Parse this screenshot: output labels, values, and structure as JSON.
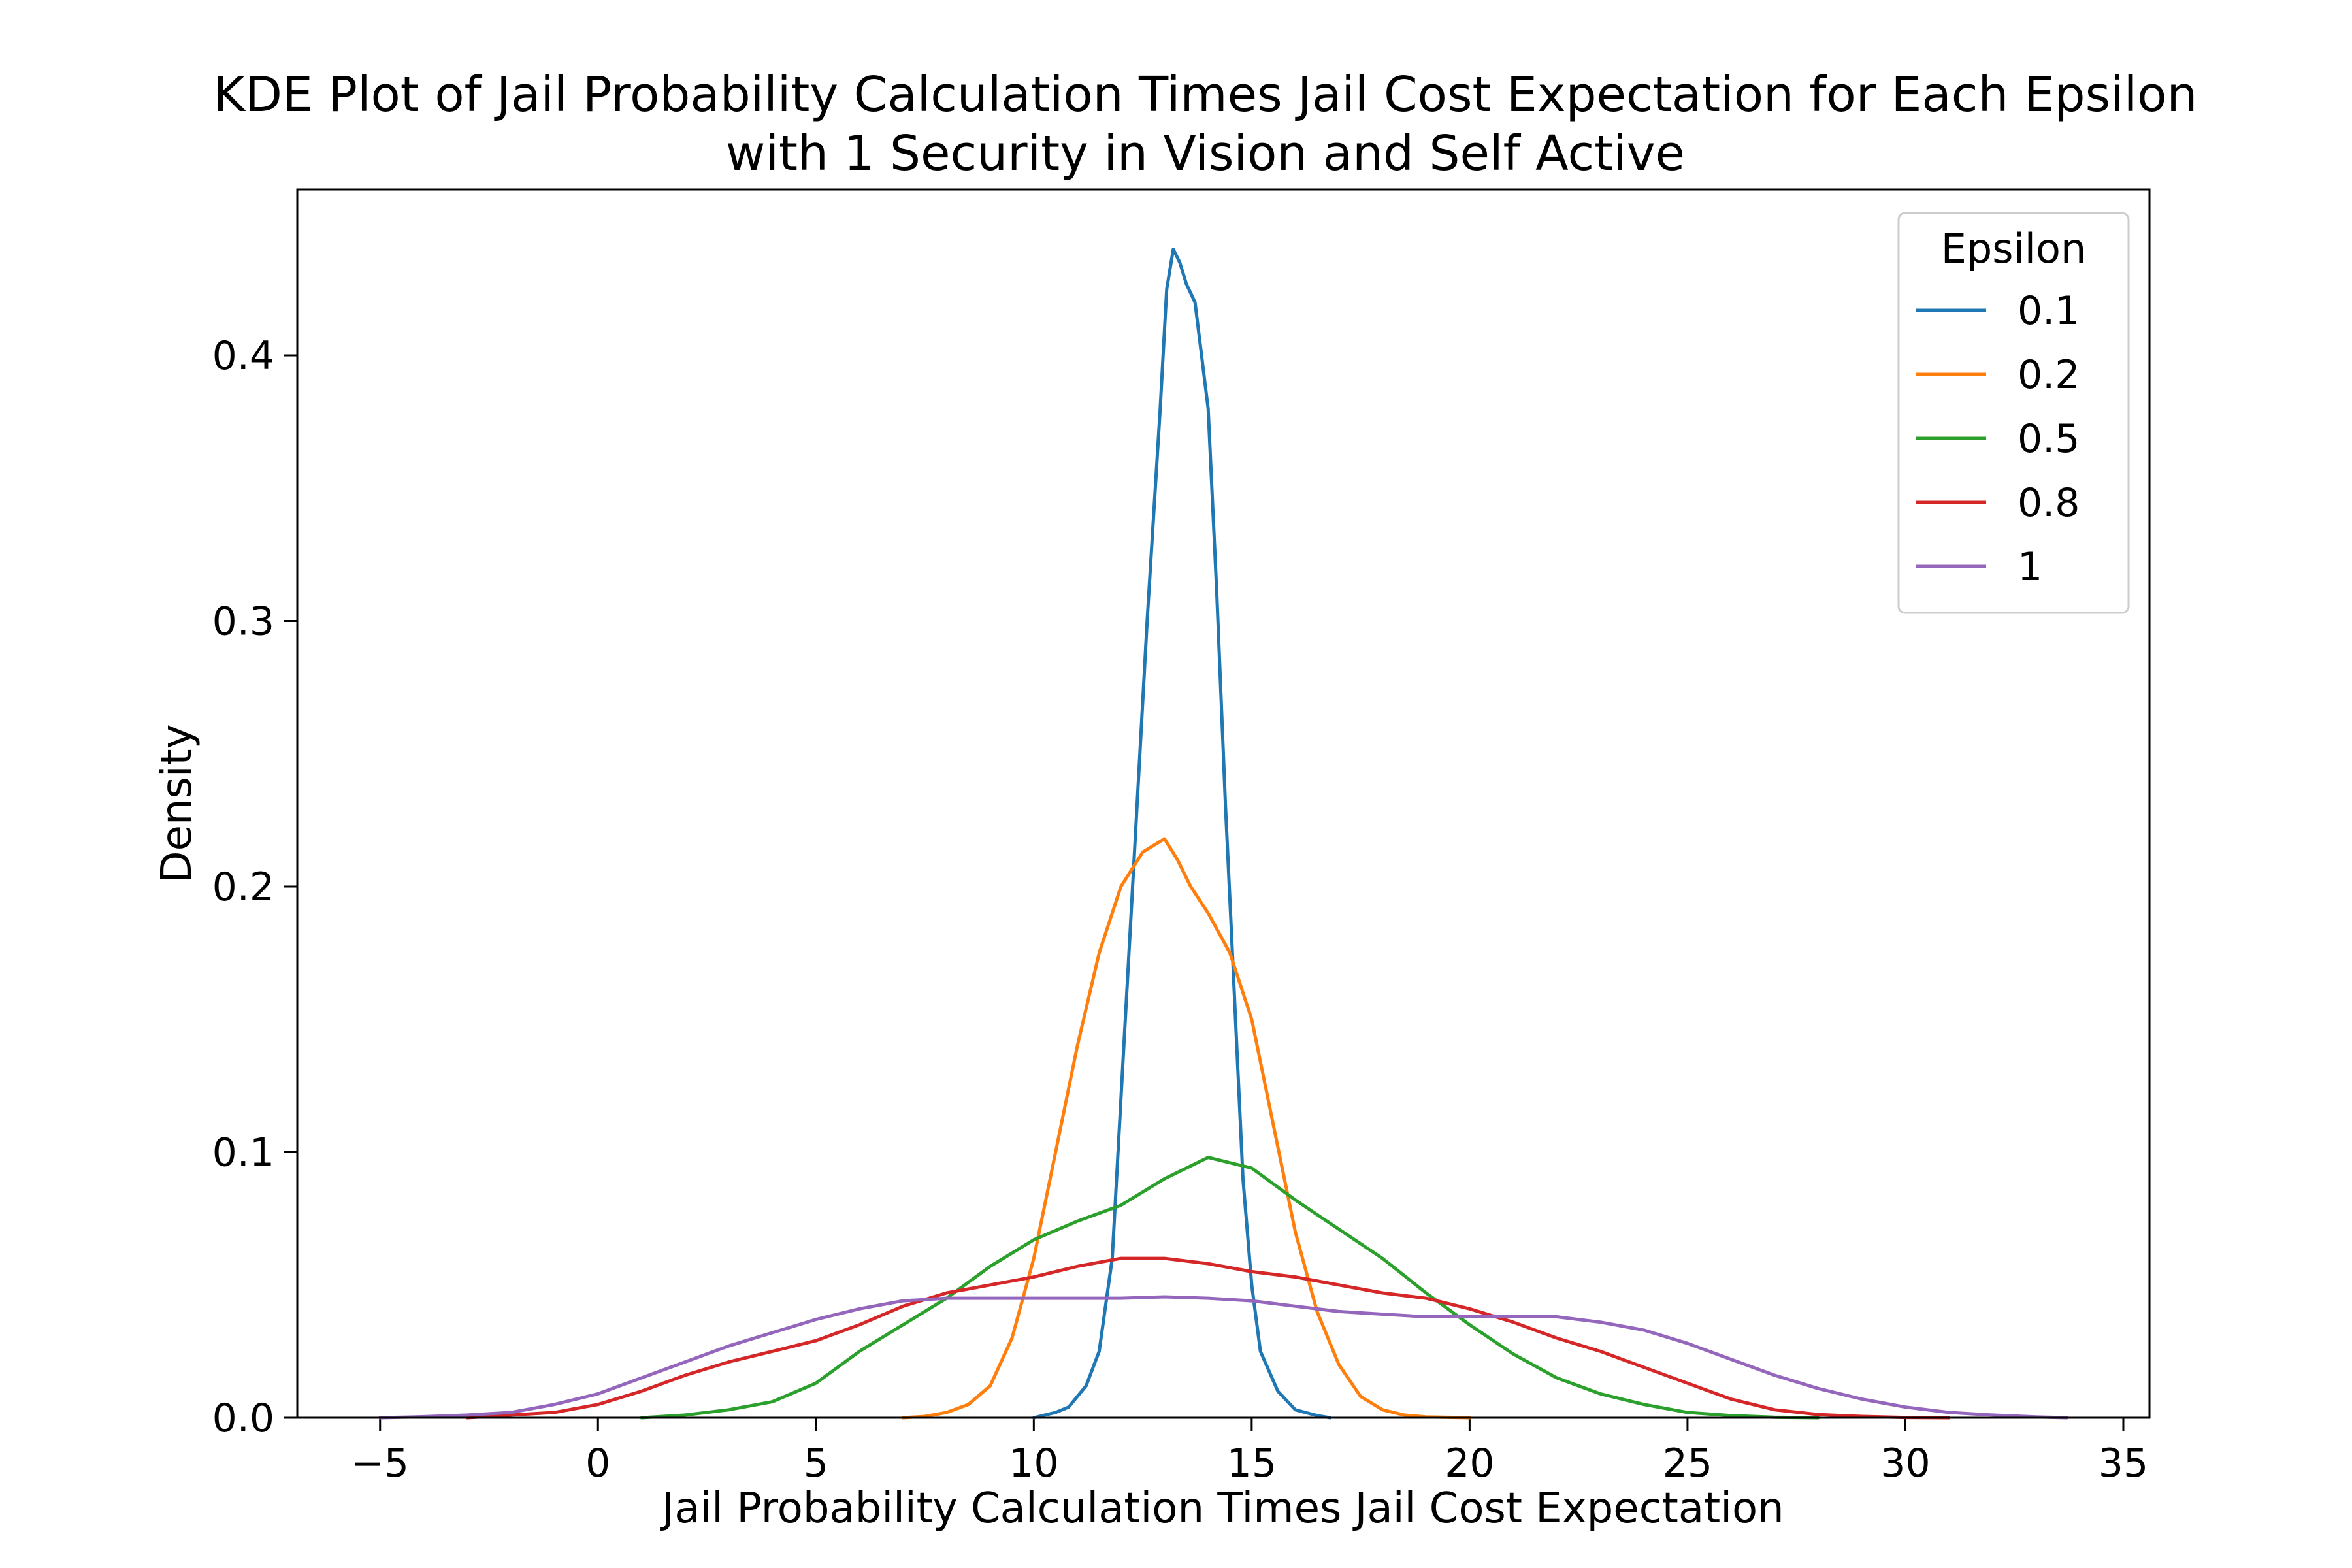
{
  "chart_data": {
    "type": "line",
    "title": "KDE Plot of Jail Probability Calculation Times Jail Cost Expectation for Each Epsilon",
    "subtitle": "with 1 Security in Vision and Self Active",
    "xlabel": "Jail Probability Calculation Times Jail Cost Expectation",
    "ylabel": "Density",
    "xlim": [
      -6.9,
      35.6
    ],
    "ylim": [
      0,
      0.4625
    ],
    "xticks": [
      -5,
      0,
      5,
      10,
      15,
      20,
      25,
      30,
      35
    ],
    "xtick_labels": [
      "−5",
      "0",
      "5",
      "10",
      "15",
      "20",
      "25",
      "30",
      "35"
    ],
    "yticks": [
      0.0,
      0.1,
      0.2,
      0.3,
      0.4
    ],
    "ytick_labels": [
      "0.0",
      "0.1",
      "0.2",
      "0.3",
      "0.4"
    ],
    "grid": false,
    "legend": {
      "title": "Epsilon",
      "position": "top-right"
    },
    "series": [
      {
        "name": "0.1",
        "color": "#1f77b4",
        "points": [
          [
            10.0,
            0.0
          ],
          [
            10.5,
            0.002
          ],
          [
            10.8,
            0.004
          ],
          [
            11.2,
            0.012
          ],
          [
            11.5,
            0.025
          ],
          [
            11.8,
            0.06
          ],
          [
            12.0,
            0.12
          ],
          [
            12.3,
            0.21
          ],
          [
            12.6,
            0.3
          ],
          [
            12.9,
            0.38
          ],
          [
            13.05,
            0.425
          ],
          [
            13.2,
            0.44
          ],
          [
            13.35,
            0.435
          ],
          [
            13.5,
            0.427
          ],
          [
            13.7,
            0.42
          ],
          [
            14.0,
            0.38
          ],
          [
            14.2,
            0.31
          ],
          [
            14.4,
            0.23
          ],
          [
            14.6,
            0.16
          ],
          [
            14.8,
            0.09
          ],
          [
            15.0,
            0.05
          ],
          [
            15.2,
            0.025
          ],
          [
            15.6,
            0.01
          ],
          [
            16.0,
            0.003
          ],
          [
            16.5,
            0.0008
          ],
          [
            16.8,
            0.0
          ]
        ]
      },
      {
        "name": "0.2",
        "color": "#ff7f0e",
        "points": [
          [
            7.0,
            0.0
          ],
          [
            7.5,
            0.0005
          ],
          [
            8.0,
            0.002
          ],
          [
            8.5,
            0.005
          ],
          [
            9.0,
            0.012
          ],
          [
            9.5,
            0.03
          ],
          [
            10.0,
            0.06
          ],
          [
            10.5,
            0.1
          ],
          [
            11.0,
            0.14
          ],
          [
            11.5,
            0.175
          ],
          [
            12.0,
            0.2
          ],
          [
            12.5,
            0.213
          ],
          [
            13.0,
            0.218
          ],
          [
            13.3,
            0.21
          ],
          [
            13.6,
            0.2
          ],
          [
            14.0,
            0.19
          ],
          [
            14.5,
            0.175
          ],
          [
            15.0,
            0.15
          ],
          [
            15.5,
            0.11
          ],
          [
            16.0,
            0.07
          ],
          [
            16.5,
            0.04
          ],
          [
            17.0,
            0.02
          ],
          [
            17.5,
            0.008
          ],
          [
            18.0,
            0.003
          ],
          [
            18.5,
            0.001
          ],
          [
            19.0,
            0.0003
          ],
          [
            20.0,
            0.0
          ]
        ]
      },
      {
        "name": "0.5",
        "color": "#2ca02c",
        "points": [
          [
            1.0,
            0.0
          ],
          [
            2.0,
            0.001
          ],
          [
            3.0,
            0.003
          ],
          [
            4.0,
            0.006
          ],
          [
            5.0,
            0.013
          ],
          [
            6.0,
            0.025
          ],
          [
            7.0,
            0.035
          ],
          [
            8.0,
            0.045
          ],
          [
            9.0,
            0.057
          ],
          [
            10.0,
            0.067
          ],
          [
            11.0,
            0.074
          ],
          [
            12.0,
            0.08
          ],
          [
            13.0,
            0.09
          ],
          [
            14.0,
            0.098
          ],
          [
            15.0,
            0.094
          ],
          [
            16.0,
            0.082
          ],
          [
            17.0,
            0.071
          ],
          [
            18.0,
            0.06
          ],
          [
            19.0,
            0.047
          ],
          [
            20.0,
            0.035
          ],
          [
            21.0,
            0.024
          ],
          [
            22.0,
            0.015
          ],
          [
            23.0,
            0.009
          ],
          [
            24.0,
            0.005
          ],
          [
            25.0,
            0.002
          ],
          [
            26.0,
            0.0008
          ],
          [
            27.0,
            0.0002
          ],
          [
            28.0,
            0.0
          ]
        ]
      },
      {
        "name": "0.8",
        "color": "#d62728",
        "points": [
          [
            -3.0,
            0.0
          ],
          [
            -2.0,
            0.001
          ],
          [
            -1.0,
            0.002
          ],
          [
            0.0,
            0.005
          ],
          [
            1.0,
            0.01
          ],
          [
            2.0,
            0.016
          ],
          [
            3.0,
            0.021
          ],
          [
            4.0,
            0.025
          ],
          [
            5.0,
            0.029
          ],
          [
            6.0,
            0.035
          ],
          [
            7.0,
            0.042
          ],
          [
            8.0,
            0.047
          ],
          [
            9.0,
            0.05
          ],
          [
            10.0,
            0.053
          ],
          [
            11.0,
            0.057
          ],
          [
            12.0,
            0.06
          ],
          [
            13.0,
            0.06
          ],
          [
            14.0,
            0.058
          ],
          [
            15.0,
            0.055
          ],
          [
            16.0,
            0.053
          ],
          [
            17.0,
            0.05
          ],
          [
            18.0,
            0.047
          ],
          [
            19.0,
            0.045
          ],
          [
            20.0,
            0.041
          ],
          [
            21.0,
            0.036
          ],
          [
            22.0,
            0.03
          ],
          [
            23.0,
            0.025
          ],
          [
            24.0,
            0.019
          ],
          [
            25.0,
            0.013
          ],
          [
            26.0,
            0.007
          ],
          [
            27.0,
            0.003
          ],
          [
            28.0,
            0.0012
          ],
          [
            29.0,
            0.0005
          ],
          [
            30.0,
            0.0001
          ],
          [
            31.0,
            0.0
          ]
        ]
      },
      {
        "name": "1",
        "color": "#9467bd",
        "points": [
          [
            -5.0,
            0.0
          ],
          [
            -4.0,
            0.0004
          ],
          [
            -3.0,
            0.001
          ],
          [
            -2.0,
            0.002
          ],
          [
            -1.0,
            0.005
          ],
          [
            0.0,
            0.009
          ],
          [
            1.0,
            0.015
          ],
          [
            2.0,
            0.021
          ],
          [
            3.0,
            0.027
          ],
          [
            4.0,
            0.032
          ],
          [
            5.0,
            0.037
          ],
          [
            6.0,
            0.041
          ],
          [
            7.0,
            0.044
          ],
          [
            8.0,
            0.045
          ],
          [
            9.0,
            0.045
          ],
          [
            10.0,
            0.045
          ],
          [
            11.0,
            0.045
          ],
          [
            12.0,
            0.045
          ],
          [
            13.0,
            0.0455
          ],
          [
            14.0,
            0.045
          ],
          [
            15.0,
            0.044
          ],
          [
            16.0,
            0.042
          ],
          [
            17.0,
            0.04
          ],
          [
            18.0,
            0.039
          ],
          [
            19.0,
            0.038
          ],
          [
            20.0,
            0.038
          ],
          [
            21.0,
            0.038
          ],
          [
            22.0,
            0.038
          ],
          [
            23.0,
            0.036
          ],
          [
            24.0,
            0.033
          ],
          [
            25.0,
            0.028
          ],
          [
            26.0,
            0.022
          ],
          [
            27.0,
            0.016
          ],
          [
            28.0,
            0.011
          ],
          [
            29.0,
            0.007
          ],
          [
            30.0,
            0.004
          ],
          [
            31.0,
            0.002
          ],
          [
            32.0,
            0.001
          ],
          [
            33.0,
            0.0003
          ],
          [
            33.7,
            0.0
          ]
        ]
      }
    ]
  }
}
